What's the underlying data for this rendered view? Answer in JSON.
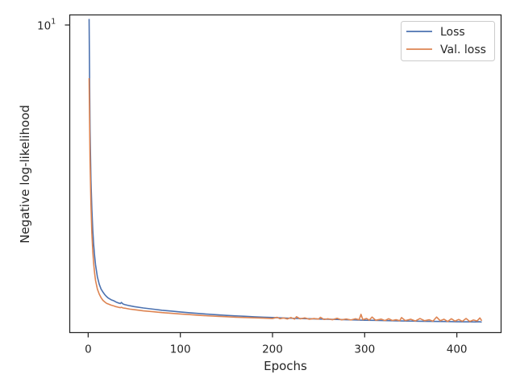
{
  "chart_data": {
    "type": "line",
    "title": "",
    "xlabel": "Epochs",
    "ylabel": "Negative log-likelihood",
    "xlim": [
      -20,
      448
    ],
    "ylim": [
      1.02,
      10.3
    ],
    "yscale": "log",
    "x_ticks": [
      0,
      100,
      200,
      300,
      400
    ],
    "x_tick_labels": [
      "0",
      "100",
      "200",
      "300",
      "400"
    ],
    "y_ticks": [
      10
    ],
    "y_tick_labels": {
      "base": "10",
      "exp": "1"
    },
    "grid": false,
    "legend": "top-right",
    "series": [
      {
        "name": "Loss",
        "color": "#4c72b0",
        "x": [
          1,
          2,
          3,
          4,
          5,
          6,
          7,
          8,
          10,
          12,
          14,
          16,
          18,
          20,
          22,
          25,
          28,
          30,
          33,
          35,
          36,
          38,
          40,
          45,
          50,
          60,
          70,
          80,
          90,
          100,
          110,
          120,
          130,
          140,
          150,
          160,
          170,
          180,
          190,
          200,
          210,
          220,
          230,
          240,
          250,
          260,
          270,
          280,
          290,
          300,
          310,
          320,
          330,
          340,
          350,
          360,
          370,
          380,
          390,
          400,
          410,
          415,
          420,
          424,
          427
        ],
        "values": [
          10.0,
          4.5,
          3.1,
          2.5,
          2.15,
          1.93,
          1.78,
          1.67,
          1.53,
          1.45,
          1.4,
          1.37,
          1.345,
          1.325,
          1.31,
          1.295,
          1.285,
          1.275,
          1.265,
          1.26,
          1.27,
          1.255,
          1.25,
          1.24,
          1.232,
          1.22,
          1.21,
          1.2,
          1.193,
          1.185,
          1.178,
          1.172,
          1.166,
          1.161,
          1.156,
          1.152,
          1.148,
          1.144,
          1.141,
          1.138,
          1.135,
          1.132,
          1.13,
          1.128,
          1.126,
          1.124,
          1.122,
          1.12,
          1.118,
          1.116,
          1.115,
          1.113,
          1.112,
          1.11,
          1.109,
          1.108,
          1.107,
          1.106,
          1.105,
          1.104,
          1.103,
          1.103,
          1.102,
          1.104,
          1.101
        ]
      },
      {
        "name": "Val. loss",
        "color": "#dd8452",
        "x": [
          1,
          2,
          3,
          4,
          5,
          6,
          7,
          8,
          10,
          12,
          14,
          16,
          18,
          20,
          22,
          25,
          28,
          30,
          33,
          35,
          36,
          38,
          40,
          45,
          50,
          60,
          70,
          80,
          90,
          100,
          110,
          120,
          130,
          140,
          150,
          160,
          170,
          180,
          190,
          200,
          205,
          208,
          212,
          216,
          220,
          224,
          226,
          230,
          235,
          240,
          245,
          250,
          252,
          256,
          260,
          265,
          270,
          275,
          280,
          285,
          290,
          294,
          296,
          298,
          302,
          305,
          308,
          312,
          318,
          322,
          326,
          330,
          334,
          338,
          340,
          344,
          350,
          355,
          360,
          365,
          370,
          374,
          378,
          382,
          386,
          390,
          394,
          398,
          402,
          406,
          410,
          414,
          418,
          422,
          425,
          427
        ],
        "values": [
          6.5,
          3.6,
          2.6,
          2.1,
          1.84,
          1.68,
          1.57,
          1.49,
          1.4,
          1.35,
          1.315,
          1.29,
          1.275,
          1.262,
          1.255,
          1.245,
          1.238,
          1.232,
          1.226,
          1.223,
          1.226,
          1.22,
          1.218,
          1.21,
          1.205,
          1.195,
          1.188,
          1.18,
          1.174,
          1.168,
          1.163,
          1.157,
          1.152,
          1.148,
          1.145,
          1.141,
          1.138,
          1.136,
          1.133,
          1.13,
          1.14,
          1.128,
          1.135,
          1.126,
          1.138,
          1.125,
          1.145,
          1.127,
          1.135,
          1.124,
          1.13,
          1.125,
          1.14,
          1.122,
          1.128,
          1.12,
          1.132,
          1.119,
          1.126,
          1.118,
          1.128,
          1.12,
          1.165,
          1.12,
          1.13,
          1.117,
          1.142,
          1.116,
          1.125,
          1.113,
          1.128,
          1.114,
          1.12,
          1.112,
          1.138,
          1.113,
          1.124,
          1.11,
          1.13,
          1.112,
          1.12,
          1.108,
          1.142,
          1.112,
          1.124,
          1.106,
          1.128,
          1.109,
          1.122,
          1.107,
          1.13,
          1.106,
          1.118,
          1.11,
          1.135,
          1.112
        ]
      }
    ]
  }
}
